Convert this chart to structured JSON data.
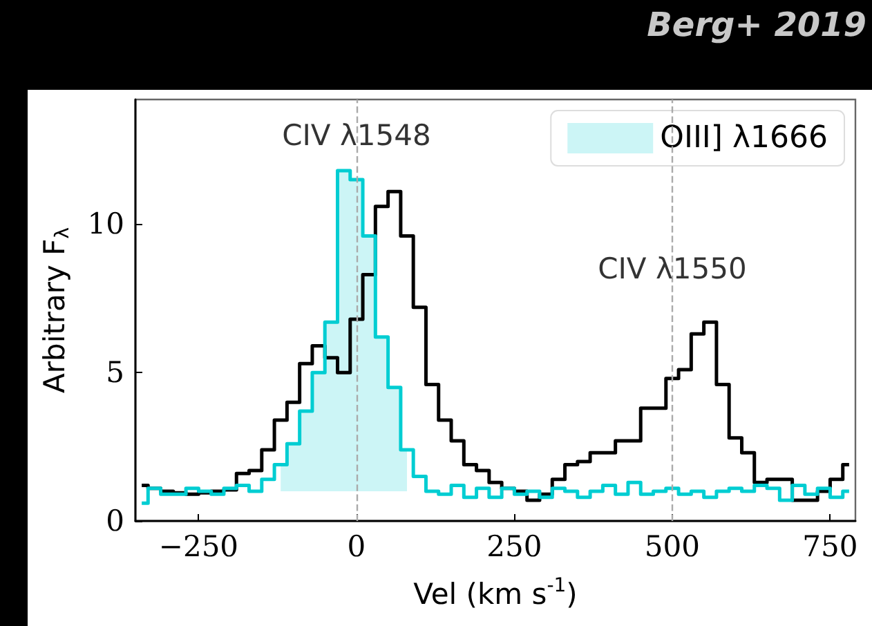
{
  "chart_data": {
    "type": "step",
    "xlabel": "Vel (km s$^{-1}$)",
    "ylabel": "Arbitrary F$_{λ}$",
    "x": [
      -340,
      -320,
      -300,
      -280,
      -260,
      -240,
      -220,
      -200,
      -180,
      -160,
      -140,
      -120,
      -100,
      -80,
      -60,
      -40,
      -20,
      0,
      20,
      40,
      60,
      80,
      100,
      120,
      140,
      160,
      180,
      200,
      220,
      240,
      260,
      280,
      300,
      320,
      340,
      360,
      380,
      400,
      420,
      440,
      460,
      480,
      500,
      520,
      540,
      560,
      580,
      600,
      620,
      640,
      660,
      680,
      700,
      720,
      740,
      760,
      780
    ],
    "series": [
      {
        "color": "#000000",
        "values": [
          1.2,
          1.1,
          1.0,
          0.95,
          0.9,
          0.95,
          1.0,
          1.05,
          1.6,
          1.7,
          2.4,
          3.4,
          4.0,
          5.3,
          5.9,
          5.5,
          5.0,
          6.8,
          8.3,
          10.6,
          11.1,
          9.6,
          7.2,
          4.6,
          3.4,
          2.7,
          1.9,
          1.7,
          1.3,
          1.1,
          1.0,
          0.7,
          0.9,
          1.4,
          1.9,
          2.0,
          2.3,
          2.3,
          2.7,
          2.7,
          3.8,
          3.8,
          4.8,
          5.1,
          6.3,
          6.7,
          4.6,
          2.8,
          2.3,
          1.3,
          1.4,
          1.4,
          0.7,
          0.7,
          1.0,
          1.4,
          1.9
        ]
      },
      {
        "name": "OIII] λ1666",
        "color": "#00cdd2",
        "values": [
          0.6,
          1.1,
          0.9,
          0.9,
          1.1,
          1.0,
          0.9,
          1.1,
          1.2,
          1.0,
          1.4,
          1.9,
          2.6,
          3.7,
          5.0,
          6.7,
          11.8,
          11.5,
          9.6,
          6.2,
          4.5,
          2.4,
          1.5,
          1.0,
          0.9,
          1.2,
          0.8,
          1.1,
          0.8,
          1.1,
          0.9,
          1.0,
          0.8,
          1.1,
          1.0,
          0.8,
          1.0,
          1.2,
          0.9,
          1.3,
          0.9,
          1.0,
          1.1,
          0.9,
          1.0,
          0.8,
          1.0,
          1.1,
          1.0,
          1.2,
          1.1,
          0.7,
          1.2,
          0.9,
          1.1,
          0.8,
          1.0
        ],
        "lower": [
          null,
          null,
          null,
          null,
          null,
          null,
          null,
          null,
          null,
          null,
          null,
          1.0,
          1.0,
          1.0,
          1.0,
          1.0,
          1.0,
          1.0,
          1.0,
          1.0,
          1.0,
          1.0,
          null,
          null,
          null,
          null,
          null,
          null,
          null,
          null,
          null,
          null,
          null,
          null,
          null,
          null,
          null,
          null,
          null,
          null,
          null,
          null,
          null,
          null,
          null,
          null,
          null,
          null,
          null,
          null,
          null,
          null,
          null,
          null,
          null,
          null,
          null
        ],
        "upper": [
          null,
          null,
          null,
          null,
          null,
          null,
          null,
          null,
          null,
          null,
          null,
          1.9,
          2.6,
          3.7,
          5.0,
          6.7,
          11.8,
          11.5,
          9.6,
          6.2,
          4.5,
          2.4,
          null,
          null,
          null,
          null,
          null,
          null,
          null,
          null,
          null,
          null,
          null,
          null,
          null,
          null,
          null,
          null,
          null,
          null,
          null,
          null,
          null,
          null,
          null,
          null,
          null,
          null,
          null,
          null,
          null,
          null,
          null,
          null,
          null,
          null,
          null
        ]
      }
    ],
    "xlim": [
      -350,
      790
    ],
    "xticks": [
      -250,
      0,
      250,
      500,
      750
    ],
    "ylim": [
      0,
      14.2
    ],
    "yticks": [
      0,
      5,
      10
    ],
    "ref_lines": [
      {
        "axis": "x",
        "value": 0,
        "color": "#aaaaaa",
        "line_style": "dashed"
      },
      {
        "axis": "x",
        "value": 500,
        "color": "#aaaaaa",
        "line_style": "dashed"
      }
    ],
    "annotations": [
      {
        "text": "CIV λ1548",
        "x": 0,
        "y": 13.0
      },
      {
        "text": "CIV λ1550",
        "x": 500,
        "y": 8.5
      },
      "Berg+ 2019"
    ],
    "legend": "top right",
    "grid": false,
    "marker": "none"
  }
}
